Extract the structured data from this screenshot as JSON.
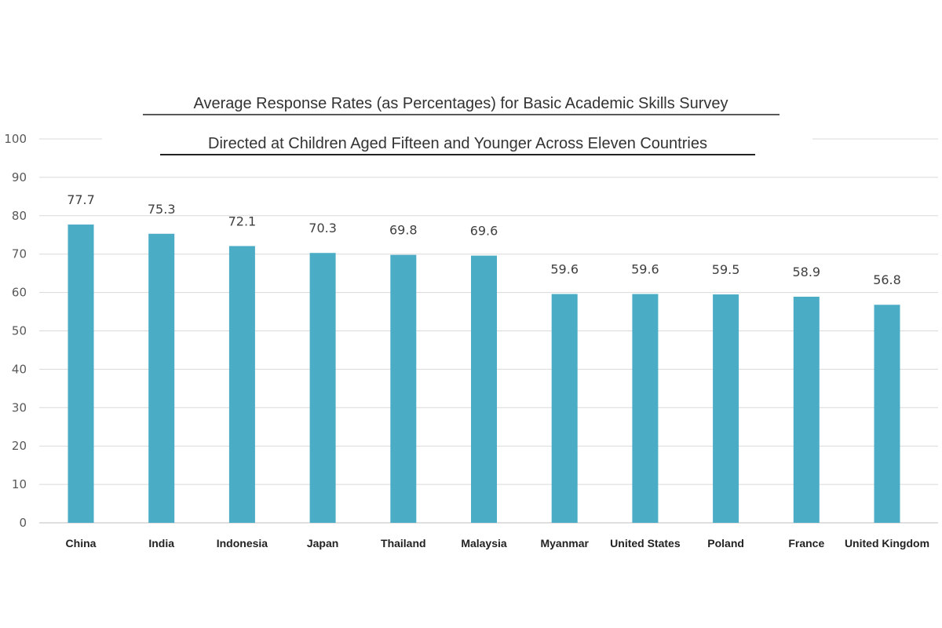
{
  "chart_data": {
    "type": "bar",
    "title": [
      "Average Response Rates (as Percentages) for Basic Academic Skills Survey",
      "Directed at Children Aged Fifteen and Younger Across Eleven Countries"
    ],
    "xlabel": "",
    "ylabel": "",
    "categories": [
      "China",
      "India",
      "Indonesia",
      "Japan",
      "Thailand",
      "Malaysia",
      "Myanmar",
      "United States",
      "Poland",
      "France",
      "United Kingdom"
    ],
    "values": [
      77.7,
      75.3,
      72.1,
      70.3,
      69.8,
      69.6,
      59.6,
      59.6,
      59.5,
      58.9,
      56.8
    ],
    "data_labels": [
      "77.7",
      "75.3",
      "72.1",
      "70.3",
      "69.8",
      "69.6",
      "59.6",
      "59.6",
      "59.5",
      "58.9",
      "56.8"
    ],
    "ylim": [
      0,
      100
    ],
    "yticks": [
      "0",
      "10",
      "20",
      "30",
      "40",
      "50",
      "60",
      "70",
      "80",
      "90",
      "100"
    ],
    "grid": true,
    "legend": "none",
    "bar_color": "#4BACC6"
  }
}
